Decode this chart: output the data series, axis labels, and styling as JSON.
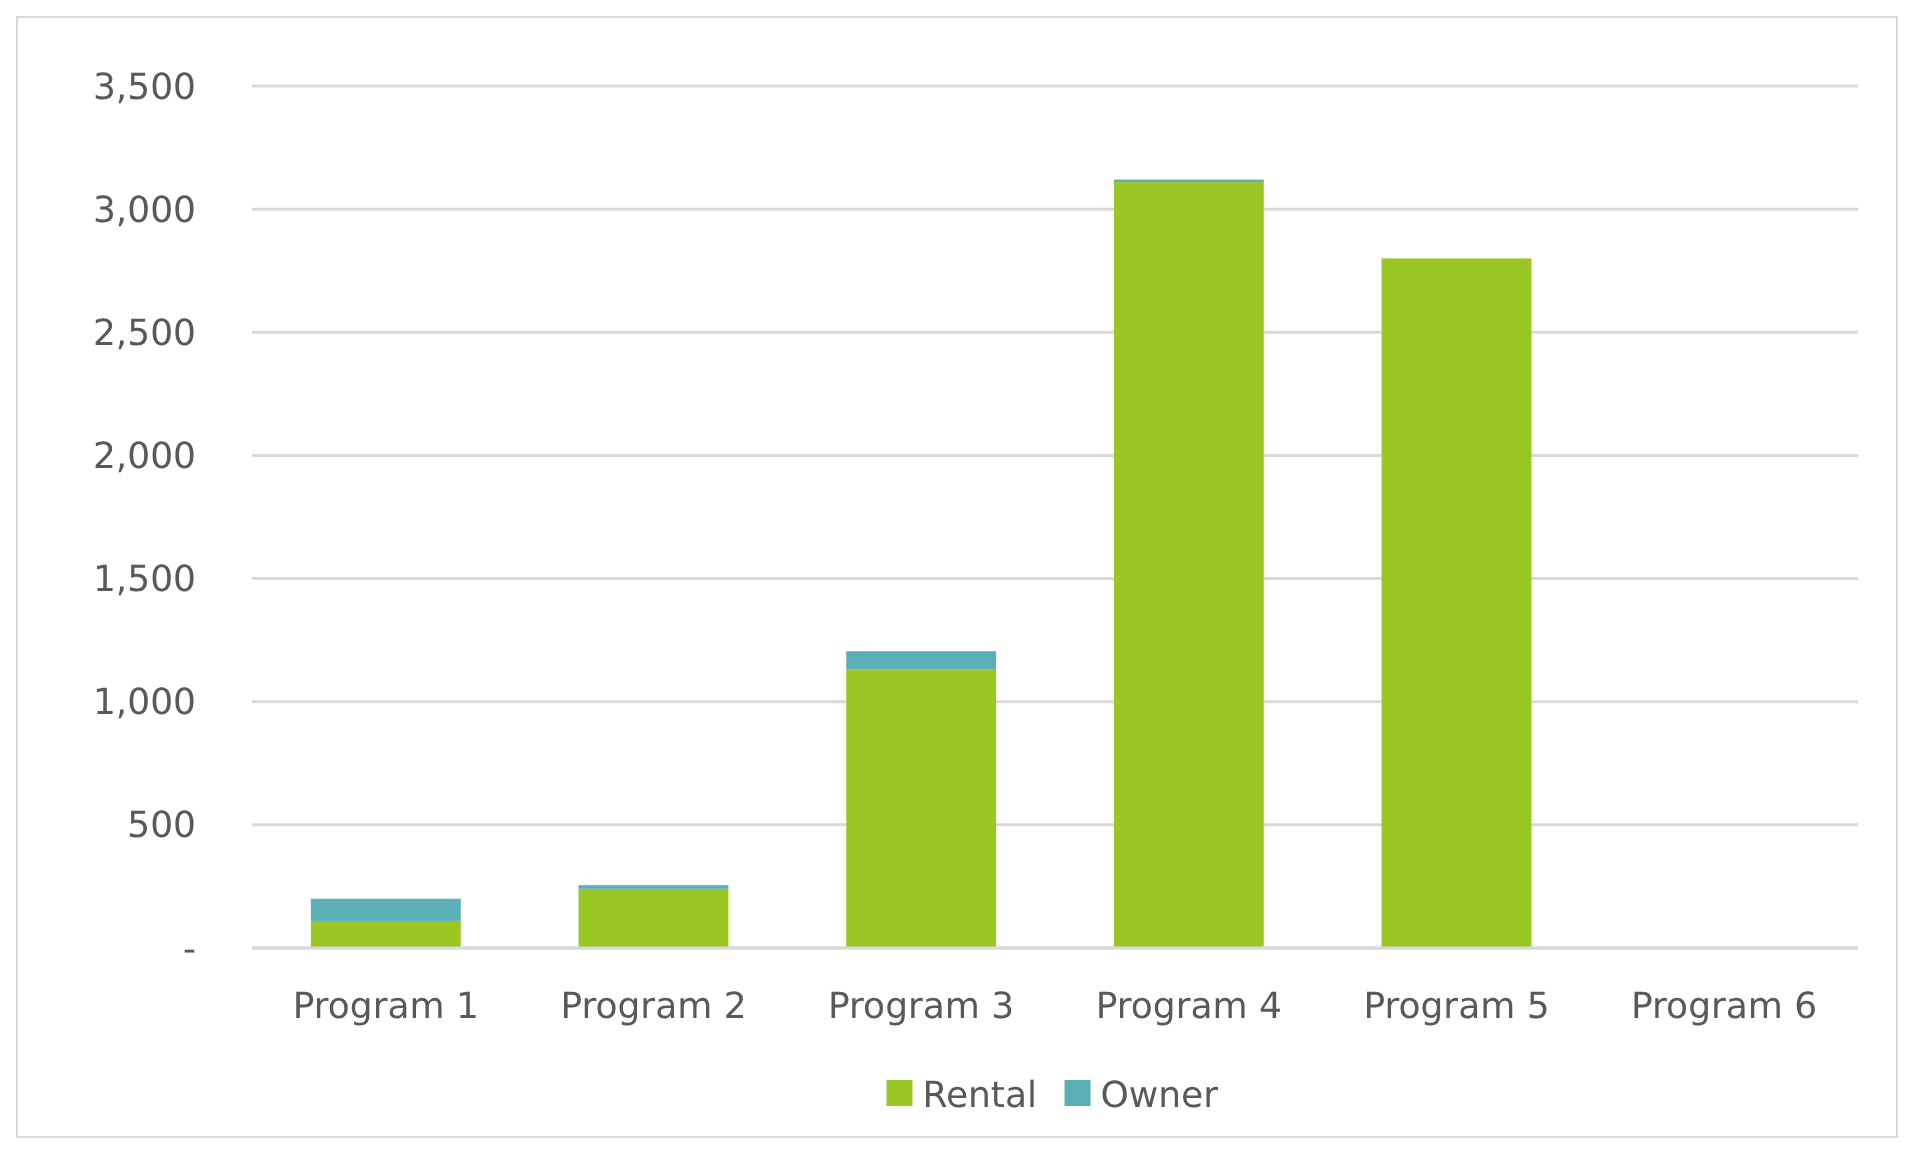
{
  "chart_data": {
    "type": "bar",
    "stacked": true,
    "categories": [
      "Program 1",
      "Program 2",
      "Program 3",
      "Program 4",
      "Program 5",
      "Program 6"
    ],
    "series": [
      {
        "name": "Rental",
        "color": "#9ac724",
        "values": [
          110,
          240,
          1130,
          3110,
          2800,
          0
        ]
      },
      {
        "name": "Owner",
        "color": "#5bb0b8",
        "values": [
          90,
          15,
          75,
          10,
          0,
          0
        ]
      }
    ],
    "ylim": [
      0,
      3500
    ],
    "yticks": [
      {
        "value": 0,
        "label": "-"
      },
      500,
      {
        "value": 1000,
        "label": "1,000"
      },
      {
        "value": 1500,
        "label": "1,500"
      },
      {
        "value": 2000,
        "label": "2,000"
      },
      {
        "value": 2500,
        "label": "2,500"
      },
      {
        "value": 3000,
        "label": "3,000"
      },
      {
        "value": 3500,
        "label": "3,500"
      }
    ],
    "grid": "y",
    "legend": "bottom"
  }
}
